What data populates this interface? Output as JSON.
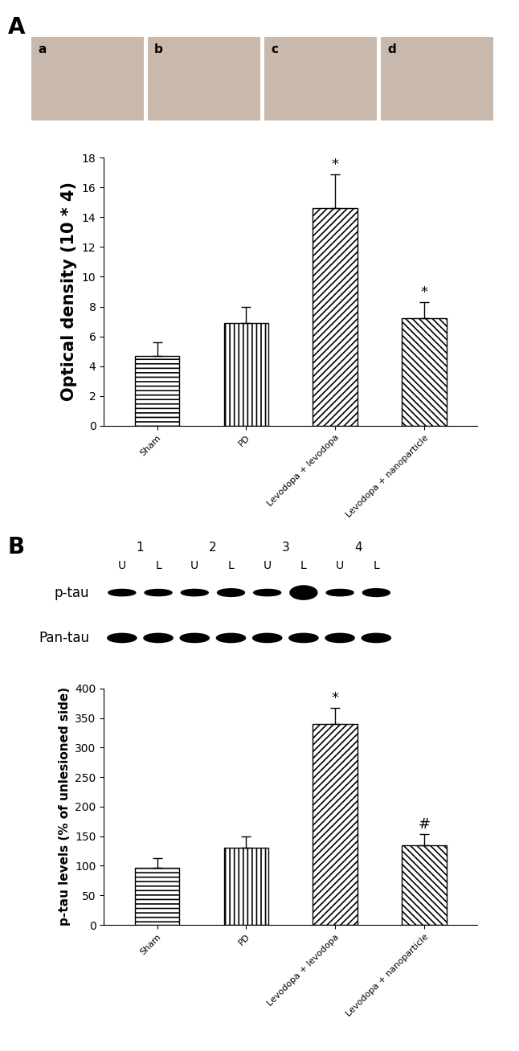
{
  "chart_data": [
    {
      "panel": "A",
      "type": "bar",
      "image_labels": [
        "a",
        "b",
        "c",
        "d"
      ],
      "categories": [
        "Sham",
        "PD",
        "Levodopa + levodopa",
        "Levodopa + nanoparticle"
      ],
      "values": [
        4.7,
        6.9,
        14.6,
        7.2
      ],
      "errors": [
        0.9,
        1.1,
        2.3,
        1.1
      ],
      "bar_marks": [
        null,
        null,
        "*",
        "*"
      ],
      "y_label": "Optical density (10 * 4)",
      "ylim": [
        0,
        18
      ],
      "yticks": [
        0,
        2,
        4,
        6,
        8,
        10,
        12,
        14,
        16,
        18
      ],
      "color": "#ffffff"
    },
    {
      "panel": "B",
      "type": "bar",
      "blot": {
        "lanes": [
          "1",
          "2",
          "3",
          "4"
        ],
        "sides": [
          "U",
          "L"
        ],
        "rows": [
          "p-tau",
          "Pan-tau"
        ]
      },
      "categories": [
        "Sham",
        "PD",
        "Levodopa + levodopa",
        "Levodopa + nanoparticle"
      ],
      "values": [
        97,
        130,
        340,
        134
      ],
      "errors": [
        16,
        20,
        27,
        20
      ],
      "bar_marks": [
        null,
        null,
        "*",
        "#"
      ],
      "y_label": "p-tau levels (% of unlesioned side)",
      "ylim": [
        0,
        400
      ],
      "yticks": [
        0,
        50,
        100,
        150,
        200,
        250,
        300,
        350,
        400
      ],
      "color": "#ffffff"
    }
  ]
}
